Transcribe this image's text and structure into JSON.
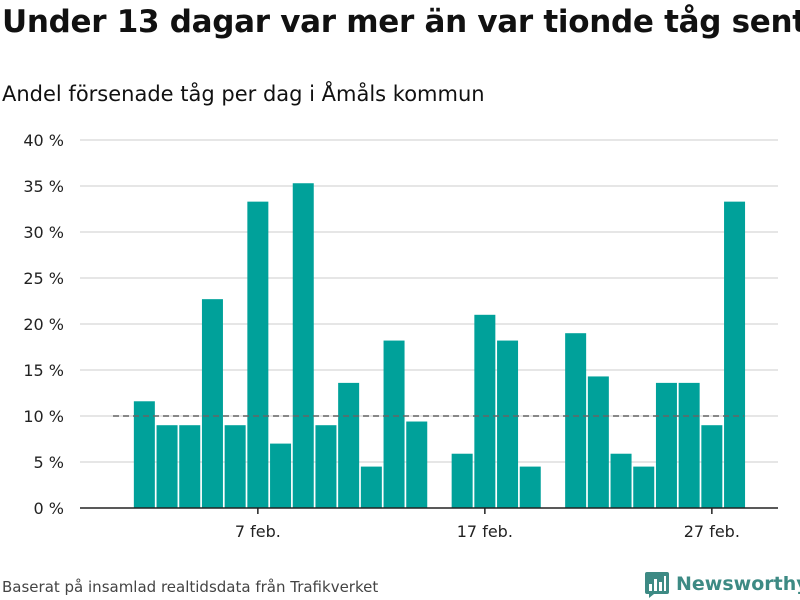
{
  "header": {
    "title": "Under 13 dagar var mer än var tionde tåg sent",
    "subtitle": "Andel försenade tåg per dag i Åmåls kommun"
  },
  "footer": {
    "source": "Baserat på insamlad realtidsdata från Trafikverket",
    "brand": "Newsworthy"
  },
  "colors": {
    "bar": "#00a19a",
    "grid": "#dddddd",
    "reference_line": "#666666",
    "brand": "#3d8a84"
  },
  "chart_data": {
    "type": "bar",
    "categories": [
      "2 feb.",
      "3 feb.",
      "4 feb.",
      "5 feb.",
      "6 feb.",
      "7 feb.",
      "8 feb.",
      "9 feb.",
      "10 feb.",
      "11 feb.",
      "12 feb.",
      "13 feb.",
      "14 feb.",
      "15 feb.",
      "16 feb.",
      "17 feb.",
      "18 feb.",
      "19 feb.",
      "20 feb.",
      "21 feb.",
      "22 feb.",
      "23 feb.",
      "24 feb.",
      "25 feb.",
      "26 feb.",
      "27 feb.",
      "28 feb."
    ],
    "values": [
      11.6,
      9.0,
      9.0,
      22.7,
      9.0,
      33.3,
      7.0,
      35.3,
      9.0,
      13.6,
      4.5,
      18.2,
      9.4,
      null,
      5.9,
      21.0,
      18.2,
      4.5,
      null,
      19.0,
      14.3,
      5.9,
      4.5,
      13.6,
      13.6,
      9.0,
      33.3
    ],
    "x_ticks": [
      "7 feb.",
      "17 feb.",
      "27 feb."
    ],
    "x_tick_positions": [
      5,
      15,
      25
    ],
    "y_ticks": [
      "0 %",
      "5 %",
      "10 %",
      "15 %",
      "20 %",
      "25 %",
      "30 %",
      "35 %",
      "40 %"
    ],
    "y_tick_values": [
      0,
      5,
      10,
      15,
      20,
      25,
      30,
      35,
      40
    ],
    "ylim": [
      0,
      40
    ],
    "reference_value": 10,
    "unit": "%",
    "grid": true,
    "legend": false
  }
}
